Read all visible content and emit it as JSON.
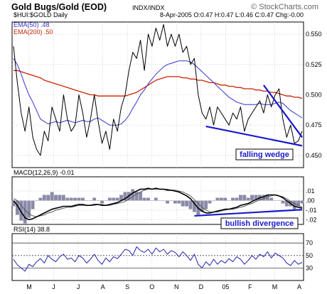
{
  "header": {
    "title": "Gold Bugs/Gold (EOD)",
    "exchange": "INDX/INDX",
    "copyright": "© StockCharts.com",
    "symbol_line": "$HUI:$GOLD Daily",
    "ohlc_line": "8-Apr-2005 O:0.47 H:0.47 L:0.46 C:0.47 Chg:-0.00"
  },
  "colors": {
    "price": "#000000",
    "ema50": "#3333cc",
    "ema200": "#cc2200",
    "macd_line": "#000000",
    "signal_line": "#000000",
    "histogram": "#8a8aa8",
    "rsi_line": "#2222aa",
    "annotation": "#1a1acc",
    "grid": "#bbbbbb"
  },
  "chart_data": [
    {
      "type": "line",
      "panel": "price",
      "title": "Gold Bugs/Gold (EOD)",
      "ylim": [
        0.44,
        0.56
      ],
      "yticks": [
        0.45,
        0.475,
        0.5,
        0.525,
        0.55
      ],
      "ytick_labels": [
        "0.450",
        "0.475",
        "0.500",
        "0.525",
        "0.550"
      ],
      "x_labels": [
        "M",
        "J",
        "J",
        "A",
        "S",
        "O",
        "N",
        "D",
        "05",
        "F",
        "M",
        "A"
      ],
      "legend": [
        {
          "key": "ema50",
          "label": "EMA(50) .48"
        },
        {
          "key": "ema200",
          "label": "EMA(200) .50"
        }
      ],
      "grid": true,
      "series": [
        {
          "key": "close",
          "values": [
            0.54,
            0.51,
            0.485,
            0.47,
            0.49,
            0.465,
            0.455,
            0.45,
            0.47,
            0.462,
            0.49,
            0.48,
            0.47,
            0.5,
            0.48,
            0.47,
            0.475,
            0.5,
            0.485,
            0.465,
            0.48,
            0.5,
            0.478,
            0.46,
            0.47,
            0.455,
            0.48,
            0.47,
            0.49,
            0.5,
            0.52,
            0.535,
            0.53,
            0.545,
            0.52,
            0.55,
            0.54,
            0.555,
            0.545,
            0.558,
            0.54,
            0.55,
            0.54,
            0.55,
            0.535,
            0.54,
            0.525,
            0.53,
            0.5,
            0.485,
            0.48,
            0.49,
            0.475,
            0.49,
            0.485,
            0.48,
            0.475,
            0.485,
            0.48,
            0.49,
            0.47,
            0.48,
            0.485,
            0.49,
            0.495,
            0.485,
            0.5,
            0.49,
            0.5,
            0.505,
            0.48,
            0.465,
            0.475,
            0.46,
            0.462,
            0.47
          ]
        },
        {
          "key": "ema50",
          "values": [
            0.53,
            0.525,
            0.517,
            0.508,
            0.5,
            0.494,
            0.487,
            0.48,
            0.478,
            0.476,
            0.477,
            0.478,
            0.477,
            0.478,
            0.479,
            0.478,
            0.477,
            0.478,
            0.479,
            0.478,
            0.478,
            0.48,
            0.481,
            0.479,
            0.477,
            0.475,
            0.475,
            0.475,
            0.476,
            0.479,
            0.483,
            0.489,
            0.494,
            0.5,
            0.504,
            0.509,
            0.513,
            0.517,
            0.52,
            0.523,
            0.525,
            0.526,
            0.527,
            0.528,
            0.528,
            0.528,
            0.527,
            0.525,
            0.522,
            0.519,
            0.516,
            0.513,
            0.51,
            0.507,
            0.504,
            0.501,
            0.498,
            0.496,
            0.494,
            0.493,
            0.492,
            0.492,
            0.492,
            0.492,
            0.493,
            0.492,
            0.492,
            0.492,
            0.493,
            0.494,
            0.493,
            0.49,
            0.487,
            0.485,
            0.483,
            0.481
          ]
        },
        {
          "key": "ema200",
          "values": [
            0.52,
            0.52,
            0.519,
            0.518,
            0.517,
            0.516,
            0.515,
            0.514,
            0.512,
            0.511,
            0.51,
            0.509,
            0.508,
            0.507,
            0.506,
            0.505,
            0.504,
            0.503,
            0.502,
            0.501,
            0.5,
            0.5,
            0.499,
            0.499,
            0.499,
            0.499,
            0.499,
            0.499,
            0.499,
            0.499,
            0.5,
            0.501,
            0.502,
            0.504,
            0.506,
            0.508,
            0.51,
            0.512,
            0.513,
            0.514,
            0.515,
            0.515,
            0.515,
            0.515,
            0.514,
            0.514,
            0.513,
            0.513,
            0.512,
            0.512,
            0.511,
            0.51,
            0.51,
            0.509,
            0.508,
            0.508,
            0.507,
            0.507,
            0.506,
            0.506,
            0.505,
            0.505,
            0.505,
            0.504,
            0.504,
            0.503,
            0.503,
            0.502,
            0.502,
            0.501,
            0.5,
            0.499,
            0.499,
            0.498,
            0.498,
            0.497
          ]
        }
      ],
      "annotations": [
        {
          "label": "falling wedge"
        }
      ]
    },
    {
      "type": "line",
      "panel": "macd",
      "title": "MACD(12,26,9) -0.01",
      "ylim": [
        -0.025,
        0.025
      ],
      "yticks": [
        0.01,
        0.0,
        -0.01,
        -0.02
      ],
      "ytick_labels": [
        ".01",
        ".00",
        "-.01",
        "-.02"
      ],
      "series": [
        {
          "key": "macd",
          "values": [
            0.0,
            -0.005,
            -0.012,
            -0.018,
            -0.02,
            -0.019,
            -0.017,
            -0.015,
            -0.013,
            -0.011,
            -0.009,
            -0.008,
            -0.007,
            -0.006,
            -0.006,
            -0.006,
            -0.005,
            -0.004,
            -0.004,
            -0.005,
            -0.005,
            -0.004,
            -0.004,
            -0.005,
            -0.005,
            -0.004,
            -0.003,
            -0.002,
            0.0,
            0.002,
            0.005,
            0.008,
            0.01,
            0.012,
            0.012,
            0.013,
            0.012,
            0.013,
            0.012,
            0.012,
            0.011,
            0.011,
            0.01,
            0.009,
            0.007,
            0.005,
            0.002,
            -0.003,
            -0.008,
            -0.011,
            -0.013,
            -0.013,
            -0.012,
            -0.011,
            -0.01,
            -0.009,
            -0.009,
            -0.008,
            -0.007,
            -0.005,
            -0.004,
            -0.003,
            -0.001,
            0.001,
            0.003,
            0.004,
            0.006,
            0.006,
            0.006,
            0.005,
            0.003,
            0.0,
            -0.003,
            -0.006,
            -0.007,
            -0.008
          ]
        },
        {
          "key": "signal",
          "values": [
            0.002,
            0.0,
            -0.005,
            -0.01,
            -0.014,
            -0.016,
            -0.017,
            -0.016,
            -0.015,
            -0.013,
            -0.012,
            -0.01,
            -0.009,
            -0.008,
            -0.007,
            -0.007,
            -0.006,
            -0.005,
            -0.005,
            -0.005,
            -0.005,
            -0.005,
            -0.004,
            -0.004,
            -0.005,
            -0.005,
            -0.004,
            -0.003,
            -0.002,
            -0.001,
            0.002,
            0.004,
            0.007,
            0.009,
            0.011,
            0.012,
            0.012,
            0.012,
            0.012,
            0.012,
            0.012,
            0.011,
            0.011,
            0.01,
            0.009,
            0.007,
            0.005,
            0.001,
            -0.003,
            -0.007,
            -0.01,
            -0.012,
            -0.012,
            -0.012,
            -0.011,
            -0.01,
            -0.009,
            -0.009,
            -0.008,
            -0.007,
            -0.006,
            -0.004,
            -0.003,
            -0.001,
            0.001,
            0.002,
            0.004,
            0.005,
            0.006,
            0.005,
            0.004,
            0.002,
            -0.001,
            -0.003,
            -0.005,
            -0.007
          ]
        }
      ],
      "annotations": [
        {
          "label": "bullish divergence"
        }
      ]
    },
    {
      "type": "line",
      "panel": "rsi",
      "title": "RSI(14) 38.8",
      "ylim": [
        10,
        85
      ],
      "yticks": [
        70,
        50,
        30
      ],
      "ytick_labels": [
        "70",
        "50",
        "30"
      ],
      "series": [
        {
          "key": "rsi",
          "values": [
            44,
            35,
            30,
            25,
            36,
            32,
            40,
            45,
            38,
            50,
            44,
            40,
            48,
            52,
            44,
            46,
            40,
            50,
            46,
            38,
            44,
            52,
            42,
            36,
            46,
            40,
            48,
            45,
            52,
            60,
            58,
            50,
            64,
            58,
            55,
            60,
            52,
            62,
            56,
            60,
            52,
            58,
            55,
            48,
            56,
            50,
            42,
            52,
            36,
            30,
            40,
            34,
            44,
            36,
            42,
            38,
            45,
            40,
            48,
            44,
            36,
            42,
            50,
            44,
            52,
            48,
            56,
            46,
            54,
            50,
            46,
            38,
            34,
            42,
            36,
            39
          ]
        }
      ]
    }
  ]
}
